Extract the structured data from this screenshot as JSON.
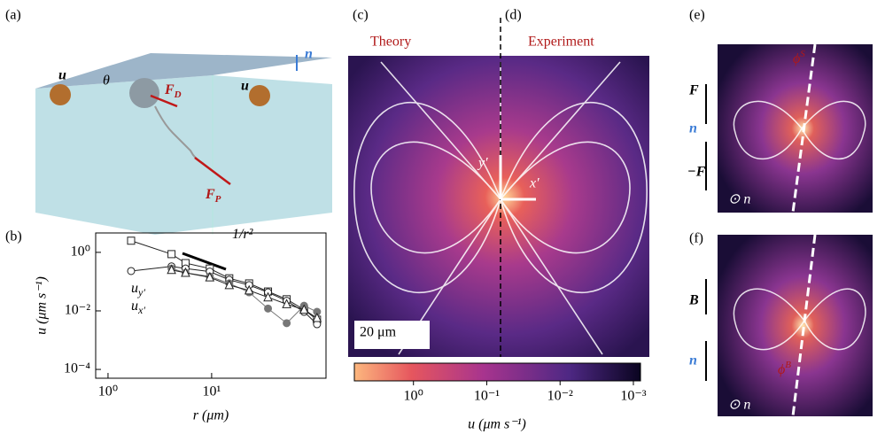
{
  "panels": {
    "a": "(a)",
    "b": "(b)",
    "c": "(c)",
    "d": "(d)",
    "e": "(e)",
    "f": "(f)"
  },
  "labels": {
    "theory": "Theory",
    "experiment": "Experiment",
    "scale_bar": "20 μm",
    "u": "u",
    "n": "n",
    "theta": "θ",
    "f_d": {
      "text": "F",
      "sub": "D"
    },
    "f_p": {
      "text": "F",
      "sub": "P"
    },
    "x_prime": "x′",
    "y_prime": "y′",
    "force": "F",
    "minus_force": "−F",
    "b_vec": "B",
    "phi_s": {
      "text": "ϕ",
      "sup": "S"
    },
    "phi_b": {
      "text": "ϕ",
      "sup": "B"
    },
    "n_e": "⊙ n",
    "n_f": "⊙ n"
  },
  "colorbar": {
    "label": "u (μm s⁻¹)",
    "log": true,
    "lim": [
      6.4,
      0.0008
    ],
    "ticks": [
      {
        "value": 1,
        "label": "10⁰"
      },
      {
        "value": 0.1,
        "label": "10⁻¹"
      },
      {
        "value": 0.01,
        "label": "10⁻²"
      },
      {
        "value": 0.001,
        "label": "10⁻³"
      }
    ]
  },
  "chart_data": {
    "type": "scatter",
    "x_label": "r (μm)",
    "y_label": "u (μm s⁻¹)",
    "log_x": true,
    "log_y": true,
    "xlim": [
      0.76,
      127
    ],
    "ylim": [
      5e-05,
      4.6
    ],
    "xticks": [
      {
        "value": 1,
        "label": "10⁰"
      },
      {
        "value": 10,
        "label": "10¹"
      }
    ],
    "yticks": [
      {
        "value": 1,
        "label": "10⁰"
      },
      {
        "value": 0.01,
        "label": "10⁻²"
      },
      {
        "value": 0.0001,
        "label": "10⁻⁴"
      }
    ],
    "x": [
      1.67,
      4.1,
      5.6,
      9.6,
      14.8,
      23,
      35,
      53,
      78,
      104
    ],
    "series": [
      {
        "marker": "square",
        "color": "#222222",
        "values": [
          2.5,
          0.87,
          0.43,
          0.28,
          0.13,
          0.087,
          0.046,
          0.025,
          0.011,
          0.005
        ]
      },
      {
        "marker": "circle",
        "color": "#222222",
        "values": [
          0.23,
          0.33,
          0.28,
          0.22,
          0.115,
          0.076,
          0.043,
          0.022,
          0.0093,
          0.0035
        ]
      },
      {
        "marker": "filled-circle",
        "color": "#777777",
        "values": [
          null,
          0.28,
          0.2,
          0.15,
          0.087,
          0.043,
          0.012,
          0.0038,
          0.015,
          0.0093
        ]
      },
      {
        "marker": "triangle",
        "color": "#222222",
        "values": [
          null,
          0.25,
          0.2,
          0.14,
          0.076,
          0.05,
          0.029,
          0.017,
          0.011,
          0.0057
        ]
      }
    ],
    "annotations": [
      {
        "text": "1/r²"
      },
      {
        "text": "u",
        "sub": "y′"
      },
      {
        "text": "u",
        "sub": "x′"
      }
    ]
  }
}
